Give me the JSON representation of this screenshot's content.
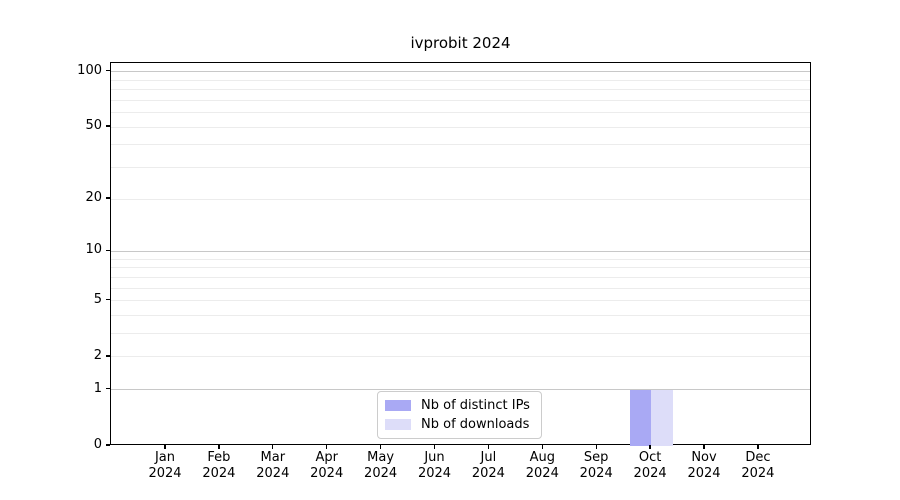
{
  "chart_data": {
    "type": "bar",
    "title": "ivprobit 2024",
    "year": "2024",
    "months": [
      "Jan",
      "Feb",
      "Mar",
      "Apr",
      "May",
      "Jun",
      "Jul",
      "Aug",
      "Sep",
      "Oct",
      "Nov",
      "Dec"
    ],
    "series": [
      {
        "name": "Nb of distinct IPs",
        "color": "#a9a9f4",
        "values": [
          0,
          0,
          0,
          0,
          0,
          0,
          0,
          0,
          0,
          1,
          0,
          0
        ]
      },
      {
        "name": "Nb of downloads",
        "color": "#ddddf9",
        "values": [
          0,
          0,
          0,
          0,
          0,
          0,
          0,
          0,
          0,
          1,
          0,
          0
        ]
      }
    ],
    "xlabel": "",
    "ylabel": "",
    "yscale": "log1p",
    "ylim": [
      0,
      111
    ],
    "yticks": [
      0,
      1,
      2,
      5,
      10,
      20,
      50,
      100
    ],
    "gridlines": {
      "major": [
        1,
        10,
        100
      ],
      "minor": [
        2,
        3,
        4,
        5,
        6,
        7,
        8,
        9,
        20,
        30,
        40,
        50,
        60,
        70,
        80,
        90
      ]
    },
    "grid": true,
    "legend": {
      "position": "lower center"
    },
    "colors": {
      "spine": "#000000",
      "major_grid": "#c8c8c8",
      "minor_grid": "#ececec",
      "text": "#000000"
    }
  }
}
